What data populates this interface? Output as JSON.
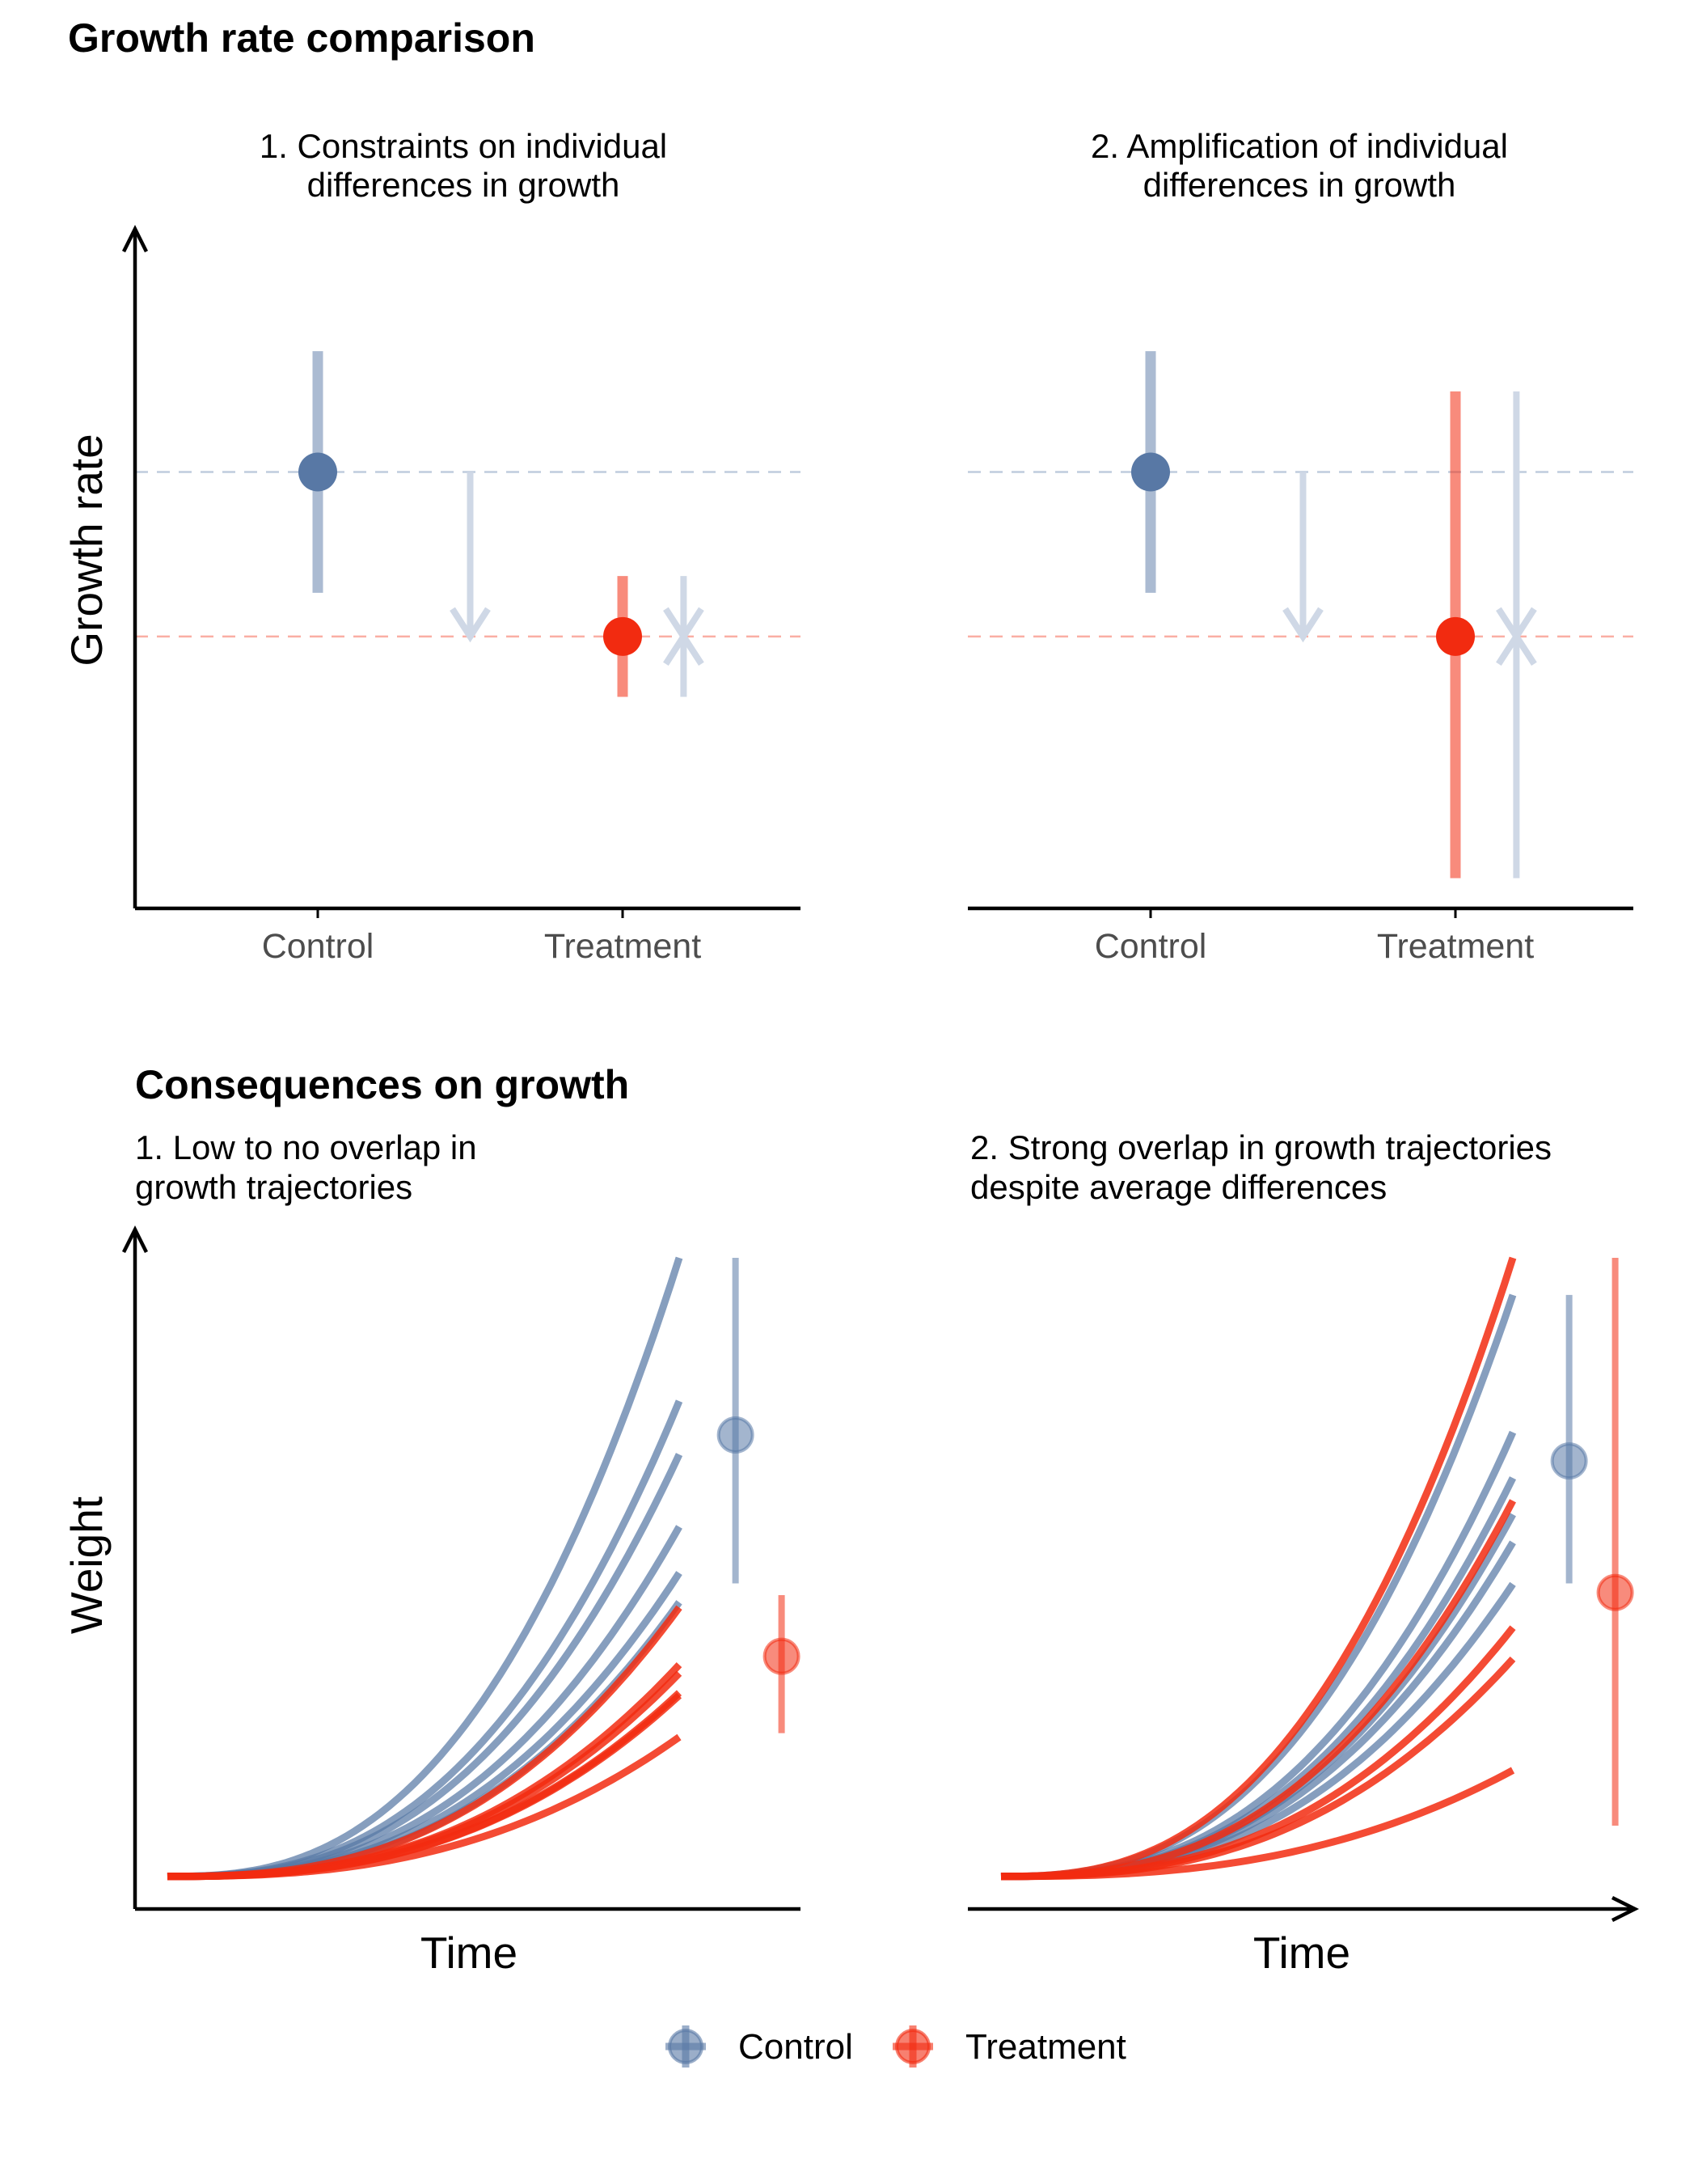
{
  "colors": {
    "control": "#5878a5",
    "treatment": "#f22b10",
    "guide": "#cfd8e6",
    "axis": "#000000"
  },
  "titles": {
    "top_section": "Growth rate comparison",
    "bottom_section": "Consequences on growth"
  },
  "chart_data": [
    {
      "type": "scatter",
      "panel": "top-left",
      "subtitle_lines": [
        "1. Constraints on individual",
        "differences in growth"
      ],
      "ylabel": "Growth rate",
      "xlabel": "",
      "categories": [
        "Control",
        "Treatment"
      ],
      "axes": {
        "y_arrow": true,
        "x_arrow": false
      },
      "ylim": [
        0,
        10
      ],
      "series": [
        {
          "name": "Control",
          "category": "Control",
          "mean": 6.5,
          "low": 4.7,
          "high": 8.3
        },
        {
          "name": "Treatment",
          "category": "Treatment",
          "mean": 4.05,
          "low": 3.15,
          "high": 4.95
        }
      ],
      "reference_lines": [
        6.5,
        4.05
      ],
      "annotation_arrows": [
        {
          "meaning": "mean decrease",
          "category_pos": 1.5,
          "from": 6.5,
          "to": 4.05
        },
        {
          "meaning": "variance shrinks (downward)",
          "category_pos": 2.2,
          "from": 4.95,
          "to": 4.05
        },
        {
          "meaning": "variance shrinks (upward)",
          "category_pos": 2.2,
          "from": 3.15,
          "to": 4.05
        }
      ]
    },
    {
      "type": "scatter",
      "panel": "top-right",
      "subtitle_lines": [
        "2. Amplification of individual",
        "differences in growth"
      ],
      "ylabel": "",
      "xlabel": "",
      "categories": [
        "Control",
        "Treatment"
      ],
      "axes": {
        "y_arrow": false,
        "x_arrow": false
      },
      "ylim": [
        0,
        10
      ],
      "series": [
        {
          "name": "Control",
          "category": "Control",
          "mean": 6.5,
          "low": 4.7,
          "high": 8.3
        },
        {
          "name": "Treatment",
          "category": "Treatment",
          "mean": 4.05,
          "low": 0.45,
          "high": 7.7
        }
      ],
      "reference_lines": [
        6.5,
        4.05
      ],
      "annotation_arrows": [
        {
          "meaning": "mean decrease",
          "category_pos": 1.5,
          "from": 6.5,
          "to": 4.05
        },
        {
          "meaning": "variance grows (downward)",
          "category_pos": 2.2,
          "from": 7.7,
          "to": 4.05
        },
        {
          "meaning": "variance grows (upward)",
          "category_pos": 2.2,
          "from": 0.45,
          "to": 4.05
        }
      ]
    },
    {
      "type": "line",
      "panel": "bottom-left",
      "subtitle_lines": [
        "1. Low to no overlap in",
        "growth trajectories"
      ],
      "xlabel": "Time",
      "ylabel": "Weight",
      "axes": {
        "y_arrow": true,
        "x_arrow": false
      },
      "xlim": [
        0,
        12
      ],
      "ylim": [
        0,
        10
      ],
      "x_end": 10,
      "y_start": 0.5,
      "series": [
        {
          "name": "Control",
          "end_values": [
            10.0,
            7.8,
            6.98,
            5.87,
            5.16,
            4.71
          ]
        },
        {
          "name": "Treatment",
          "end_values": [
            4.63,
            3.75,
            3.62,
            3.32,
            3.28,
            2.64
          ]
        }
      ],
      "summary_points": [
        {
          "name": "Control",
          "x": 11.1,
          "mean": 7.28,
          "low": 5.0,
          "high": 10.0
        },
        {
          "name": "Treatment",
          "x": 12.0,
          "mean": 3.88,
          "low": 2.7,
          "high": 4.82
        }
      ]
    },
    {
      "type": "line",
      "panel": "bottom-right",
      "subtitle_lines": [
        "2. Strong overlap in growth trajectories",
        "despite average differences"
      ],
      "xlabel": "Time",
      "ylabel": "",
      "axes": {
        "y_arrow": false,
        "x_arrow": true
      },
      "xlim": [
        0,
        12
      ],
      "ylim": [
        0,
        10
      ],
      "x_end": 10,
      "y_start": 0.5,
      "series": [
        {
          "name": "Control",
          "end_values": [
            9.43,
            7.32,
            6.62,
            6.06,
            5.63,
            4.99
          ]
        },
        {
          "name": "Treatment",
          "end_values": [
            10.0,
            6.27,
            4.32,
            3.84,
            2.13
          ]
        }
      ],
      "summary_points": [
        {
          "name": "Control",
          "x": 11.1,
          "mean": 6.88,
          "low": 5.0,
          "high": 9.43
        },
        {
          "name": "Treatment",
          "x": 12.0,
          "mean": 4.86,
          "low": 1.28,
          "high": 10.0
        }
      ]
    }
  ],
  "legend": {
    "placement": "bottom",
    "items": [
      {
        "key": "control",
        "label": "Control"
      },
      {
        "key": "treatment",
        "label": "Treatment"
      }
    ]
  }
}
